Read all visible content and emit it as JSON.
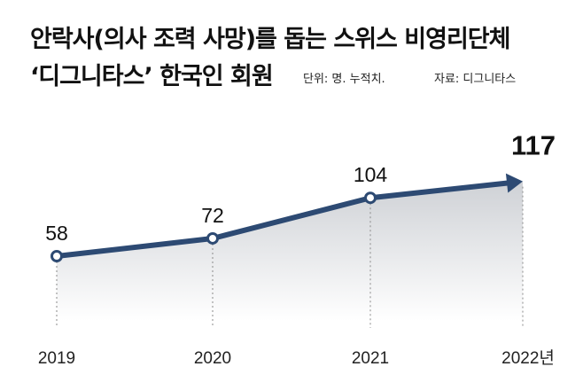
{
  "title_lines": [
    "안락사(의사 조력 사망)를 돕는 스위스 비영리단체",
    "‘디그니타스’ 한국인 회원"
  ],
  "unit_note": "단위: 명. 누적치.",
  "source_note": "자료: 디그니타스",
  "colors": {
    "line": "#2d4a73",
    "area_top": "#c9ccd1",
    "area_bottom": "#ffffff",
    "marker_fill": "#ffffff"
  },
  "chart_data": {
    "type": "line",
    "title": "안락사(의사 조력 사망)를 돕는 스위스 비영리단체 ‘디그니타스’ 한국인 회원",
    "categories": [
      "2019",
      "2020",
      "2021",
      "2022년"
    ],
    "series": [
      {
        "values": [
          58,
          72,
          104,
          117
        ]
      }
    ],
    "xlabel": "",
    "ylabel": "",
    "unit": "명",
    "cumulative": true,
    "grid": false,
    "legend": "none",
    "final_point_marker": "arrow"
  }
}
